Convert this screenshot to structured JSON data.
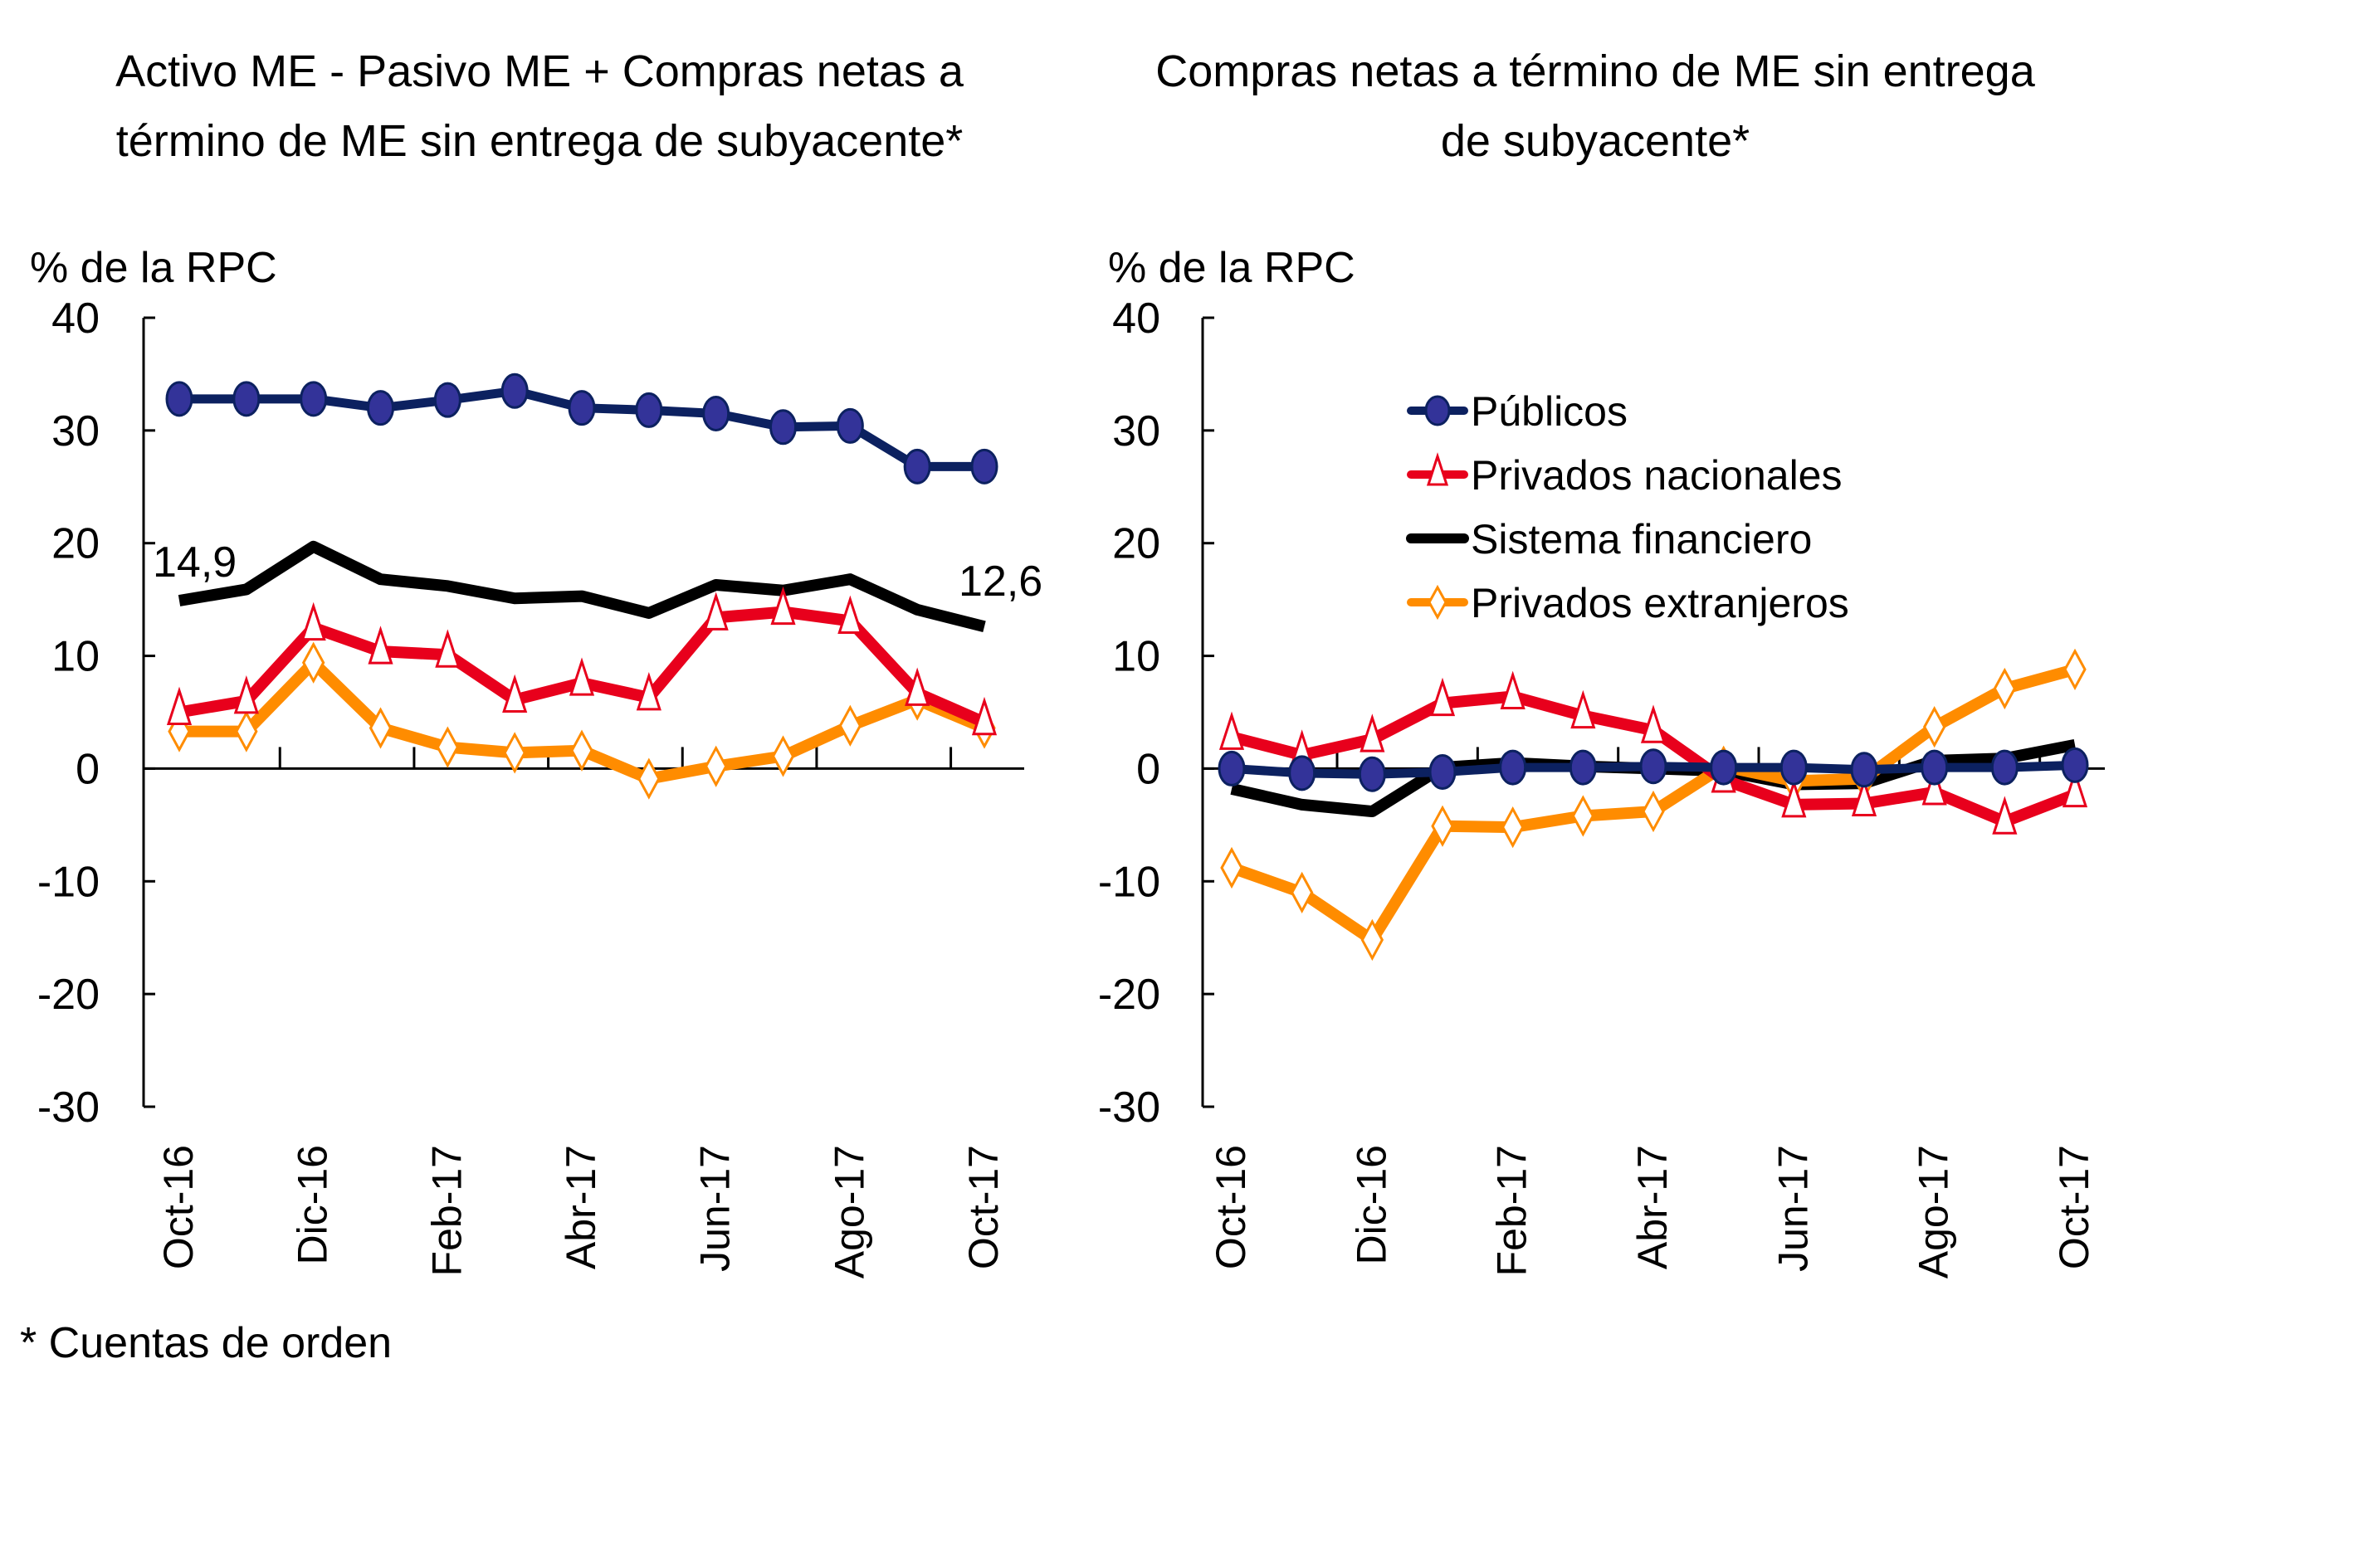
{
  "footnote": "* Cuentas de orden",
  "chart_data": [
    {
      "type": "line",
      "title": "Activo ME - Pasivo ME + Compras netas a término de ME sin entrega de subyacente*",
      "title_lines": [
        "Activo ME - Pasivo ME + Compras netas a",
        "término de ME sin entrega de subyacente*"
      ],
      "ylabel": "% de la RPC",
      "xlabel": "",
      "ylim": [
        -30,
        40
      ],
      "yticks": [
        40,
        30,
        20,
        10,
        0,
        -10,
        -20,
        -30
      ],
      "x": [
        "Oct-16",
        "Nov-16",
        "Dic-16",
        "Ene-17",
        "Feb-17",
        "Mar-17",
        "Abr-17",
        "May-17",
        "Jun-17",
        "Jul-17",
        "Ago-17",
        "Sep-17",
        "Oct-17"
      ],
      "xtick_labels": [
        "Oct-16",
        "Dic-16",
        "Feb-17",
        "Abr-17",
        "Jun-17",
        "Ago-17",
        "Oct-17"
      ],
      "grid": false,
      "legend": null,
      "annotations": [
        {
          "text": "14,9",
          "series": "Sistema financiero",
          "at": "Oct-16"
        },
        {
          "text": "12,6",
          "series": "Sistema financiero",
          "at": "Oct-17"
        }
      ],
      "series": [
        {
          "name": "Públicos",
          "color": "#0C2160",
          "marker_fill": "#333399",
          "marker": "circle",
          "values": [
            32.8,
            32.8,
            32.8,
            32.0,
            32.7,
            33.5,
            32.0,
            31.8,
            31.5,
            30.3,
            30.4,
            26.8,
            26.8
          ]
        },
        {
          "name": "Privados nacionales",
          "color": "#E8001C",
          "marker_fill": "#FFFFFF",
          "marker": "triangle",
          "values": [
            5.0,
            6.0,
            12.5,
            10.4,
            10.1,
            6.1,
            7.6,
            6.3,
            13.4,
            13.9,
            13.1,
            6.7,
            4.1
          ]
        },
        {
          "name": "Sistema financiero",
          "color": "#000000",
          "marker_fill": null,
          "marker": "none",
          "values": [
            14.9,
            15.9,
            19.7,
            16.8,
            16.2,
            15.1,
            15.3,
            13.8,
            16.3,
            15.8,
            16.8,
            14.1,
            12.6
          ]
        },
        {
          "name": "Privados extranjeros",
          "color": "#FF8C00",
          "marker_fill": "#FFFFFF",
          "marker": "diamond",
          "values": [
            3.3,
            3.3,
            9.4,
            3.6,
            1.9,
            1.4,
            1.6,
            -0.9,
            0.2,
            1.1,
            3.8,
            6.1,
            3.6
          ]
        }
      ]
    },
    {
      "type": "line",
      "title": "Compras netas a término de ME sin entrega de subyacente*",
      "title_lines": [
        "Compras netas a término de ME sin entrega",
        "de subyacente*"
      ],
      "ylabel": "% de la RPC",
      "xlabel": "",
      "ylim": [
        -30,
        40
      ],
      "yticks": [
        40,
        30,
        20,
        10,
        0,
        -10,
        -20,
        -30
      ],
      "x": [
        "Oct-16",
        "Nov-16",
        "Dic-16",
        "Ene-17",
        "Feb-17",
        "Mar-17",
        "Abr-17",
        "May-17",
        "Jun-17",
        "Jul-17",
        "Ago-17",
        "Sep-17",
        "Oct-17"
      ],
      "xtick_labels": [
        "Oct-16",
        "Dic-16",
        "Feb-17",
        "Abr-17",
        "Jun-17",
        "Ago-17",
        "Oct-17"
      ],
      "grid": false,
      "legend": {
        "placement": "top-center",
        "entries": [
          "Públicos",
          "Privados nacionales",
          "Sistema financiero",
          "Privados extranjeros"
        ]
      },
      "series": [
        {
          "name": "Públicos",
          "color": "#0C2160",
          "marker_fill": "#333399",
          "marker": "circle",
          "values": [
            0.0,
            -0.4,
            -0.5,
            -0.3,
            0.1,
            0.1,
            0.2,
            0.1,
            0.1,
            -0.1,
            0.1,
            0.1,
            0.3
          ]
        },
        {
          "name": "Privados nacionales",
          "color": "#E8001C",
          "marker_fill": "#FFFFFF",
          "marker": "triangle",
          "values": [
            2.8,
            1.2,
            2.6,
            5.8,
            6.4,
            4.7,
            3.4,
            -1.0,
            -3.2,
            -3.1,
            -2.1,
            -4.7,
            -2.3
          ]
        },
        {
          "name": "Sistema financiero",
          "color": "#000000",
          "marker_fill": null,
          "marker": "none",
          "values": [
            -1.8,
            -3.2,
            -3.8,
            0.1,
            0.5,
            0.2,
            0.0,
            -0.2,
            -1.4,
            -1.3,
            0.7,
            0.9,
            2.1
          ]
        },
        {
          "name": "Privados extranjeros",
          "color": "#FF8C00",
          "marker_fill": "#FFFFFF",
          "marker": "diamond",
          "values": [
            -8.8,
            -11.0,
            -15.2,
            -5.1,
            -5.2,
            -4.2,
            -3.8,
            0.2,
            -1.1,
            -0.9,
            3.7,
            7.1,
            8.8
          ]
        }
      ]
    }
  ]
}
